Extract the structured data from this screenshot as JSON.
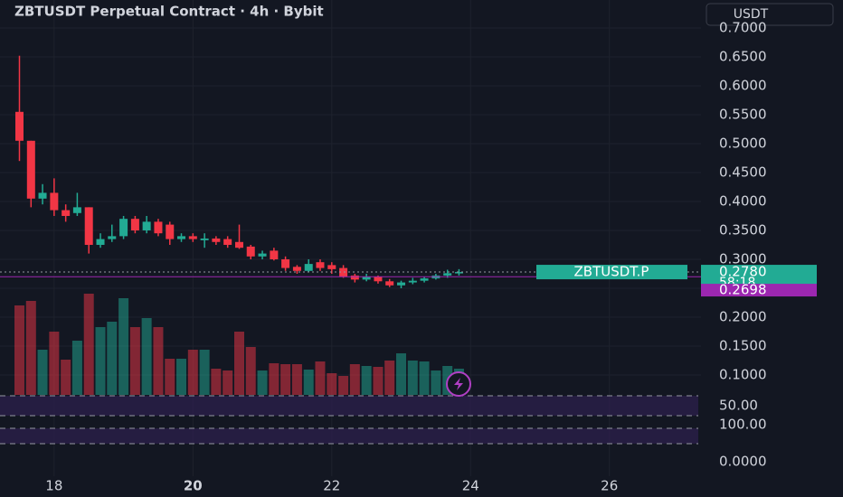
{
  "chart_data": {
    "type": "candlestick",
    "title": "ZBTUSDT Perpetual Contract · 4h · Bybit",
    "currency_button": "USDT",
    "up_color": "#22ab94",
    "down_color": "#f23645",
    "background": "#131722",
    "grid": true,
    "x": [
      17.5,
      17.667,
      17.833,
      18,
      18.167,
      18.333,
      18.5,
      18.667,
      18.833,
      19,
      19.167,
      19.333,
      19.5,
      19.667,
      19.833,
      20,
      20.167,
      20.333,
      20.5,
      20.667,
      20.833,
      21,
      21.167,
      21.333,
      21.5,
      21.667,
      21.833,
      22,
      22.167,
      22.333,
      22.5,
      22.667,
      22.833,
      23,
      23.167,
      23.333,
      23.5,
      23.667,
      23.833
    ],
    "open": [
      0.555,
      0.505,
      0.405,
      0.415,
      0.385,
      0.38,
      0.39,
      0.325,
      0.335,
      0.34,
      0.37,
      0.35,
      0.365,
      0.36,
      0.335,
      0.34,
      0.333,
      0.336,
      0.335,
      0.33,
      0.322,
      0.305,
      0.315,
      0.3,
      0.287,
      0.28,
      0.295,
      0.29,
      0.285,
      0.272,
      0.265,
      0.27,
      0.262,
      0.255,
      0.26,
      0.263,
      0.267,
      0.272,
      0.276
    ],
    "high": [
      0.652,
      0.505,
      0.43,
      0.44,
      0.395,
      0.415,
      0.39,
      0.345,
      0.36,
      0.375,
      0.375,
      0.375,
      0.37,
      0.365,
      0.345,
      0.345,
      0.345,
      0.34,
      0.34,
      0.36,
      0.325,
      0.315,
      0.32,
      0.305,
      0.29,
      0.3,
      0.3,
      0.295,
      0.29,
      0.275,
      0.275,
      0.272,
      0.266,
      0.263,
      0.268,
      0.27,
      0.275,
      0.282,
      0.283
    ],
    "low": [
      0.47,
      0.39,
      0.395,
      0.375,
      0.365,
      0.375,
      0.31,
      0.32,
      0.33,
      0.335,
      0.345,
      0.345,
      0.34,
      0.325,
      0.33,
      0.33,
      0.32,
      0.325,
      0.32,
      0.318,
      0.3,
      0.3,
      0.298,
      0.28,
      0.275,
      0.278,
      0.28,
      0.275,
      0.268,
      0.26,
      0.262,
      0.258,
      0.252,
      0.25,
      0.257,
      0.26,
      0.265,
      0.268,
      0.272
    ],
    "close": [
      0.505,
      0.405,
      0.415,
      0.385,
      0.375,
      0.39,
      0.325,
      0.335,
      0.34,
      0.37,
      0.35,
      0.365,
      0.345,
      0.335,
      0.34,
      0.335,
      0.336,
      0.33,
      0.325,
      0.32,
      0.305,
      0.31,
      0.3,
      0.285,
      0.28,
      0.292,
      0.285,
      0.283,
      0.27,
      0.265,
      0.27,
      0.262,
      0.255,
      0.26,
      0.263,
      0.267,
      0.272,
      0.276,
      0.278
    ],
    "volume": [
      99,
      104,
      50,
      70,
      39,
      60,
      112,
      75,
      81,
      107,
      75,
      85,
      75,
      40,
      40,
      50,
      50,
      29,
      27,
      70,
      53,
      27,
      35,
      34,
      34,
      28,
      37,
      24,
      21,
      34,
      32,
      31,
      38,
      46,
      38,
      37,
      27,
      32,
      29
    ],
    "vlim": [
      0,
      130
    ],
    "xlim": [
      17.22,
      27.32
    ],
    "xticks": [
      18,
      20,
      22,
      24,
      26
    ],
    "ylim": [
      0.0656,
      0.7484
    ],
    "yticks": [
      {
        "value": 0.1,
        "label": "0.1000"
      },
      {
        "value": 0.15,
        "label": "0.1500"
      },
      {
        "value": 0.2,
        "label": "0.2000"
      },
      {
        "value": 0.25,
        "label": "0.2500"
      },
      {
        "value": 0.3,
        "label": "0.3000"
      },
      {
        "value": 0.35,
        "label": "0.3500"
      },
      {
        "value": 0.4,
        "label": "0.4000"
      },
      {
        "value": 0.45,
        "label": "0.4500"
      },
      {
        "value": 0.5,
        "label": "0.5000"
      },
      {
        "value": 0.55,
        "label": "0.5500"
      },
      {
        "value": 0.6,
        "label": "0.6000"
      },
      {
        "value": 0.65,
        "label": "0.6500"
      },
      {
        "value": 0.7,
        "label": "0.7000"
      }
    ],
    "last_price": {
      "value": 0.278,
      "label": "0.2780",
      "symbol": "ZBTUSDT.P",
      "countdown": "58:18"
    },
    "mark_price": {
      "value": 0.2698,
      "label": "0.2698"
    },
    "indicator_labels": [
      "50.00",
      "100.00",
      "0.0000"
    ]
  }
}
